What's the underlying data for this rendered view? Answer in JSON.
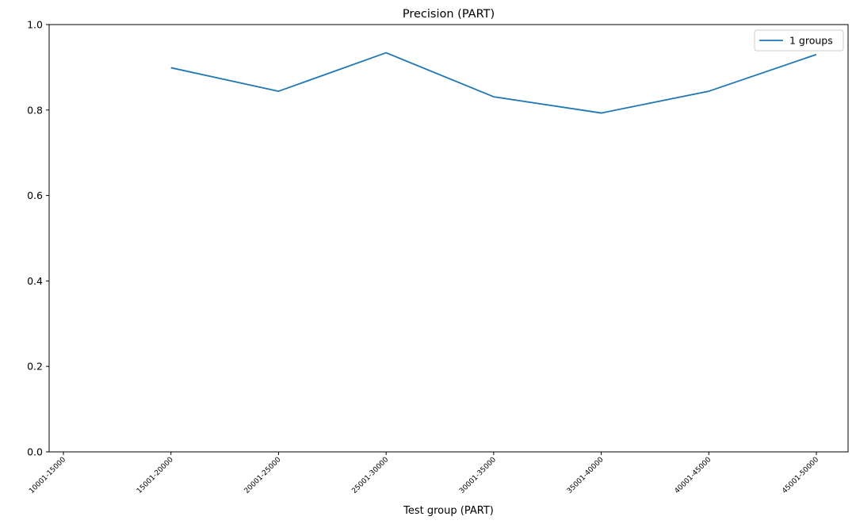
{
  "chart_data": {
    "type": "line",
    "title": "Precision (PART)",
    "xlabel": "Test group (PART)",
    "ylabel": "",
    "categories": [
      "10001-15000",
      "15001-20000",
      "20001-25000",
      "25001-30000",
      "30001-35000",
      "35001-40000",
      "40001-45000",
      "45001-50000"
    ],
    "x_index_range": [
      0,
      7
    ],
    "ylim": [
      0.0,
      1.0
    ],
    "yticks": [
      "0.0",
      "0.2",
      "0.4",
      "0.6",
      "0.8",
      "1.0"
    ],
    "grid": false,
    "legend_position": "top-right",
    "series": [
      {
        "name": "1 groups",
        "color": "#1f77b4",
        "points": [
          {
            "category": "15001-20000",
            "value": 0.899
          },
          {
            "category": "20001-25000",
            "value": 0.844
          },
          {
            "category": "25001-30000",
            "value": 0.934
          },
          {
            "category": "30001-35000",
            "value": 0.831
          },
          {
            "category": "35001-40000",
            "value": 0.793
          },
          {
            "category": "40001-45000",
            "value": 0.844
          },
          {
            "category": "45001-50000",
            "value": 0.93
          }
        ]
      }
    ]
  }
}
